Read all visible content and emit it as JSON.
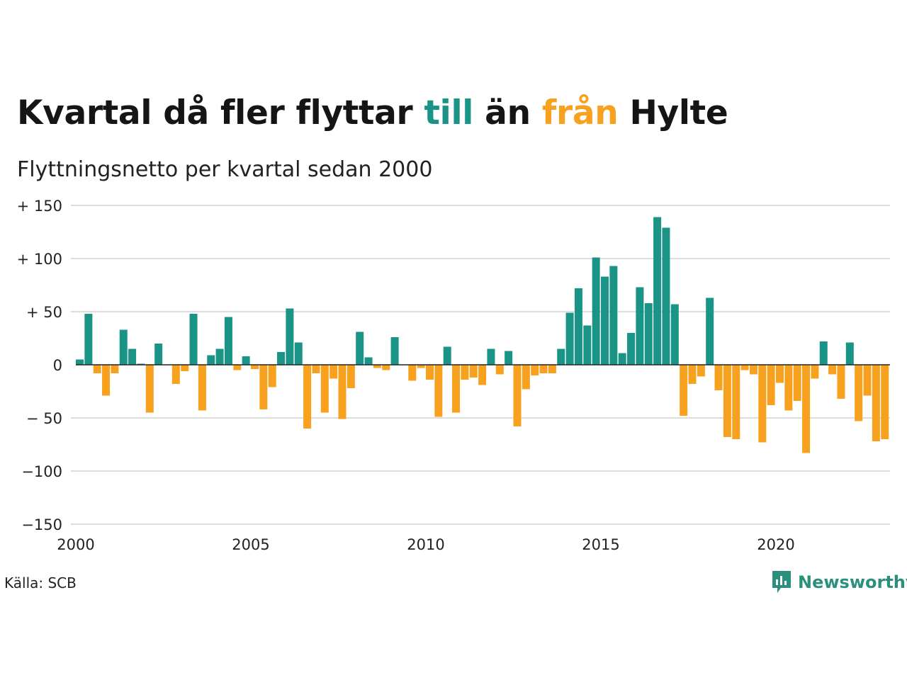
{
  "title": {
    "part1": "Kvartal då fler flyttar ",
    "positive_word": "till",
    "part2": " än ",
    "negative_word": "från",
    "part3": " Hylte"
  },
  "subtitle": "Flyttningsnetto per kvartal sedan 2000",
  "source": "Källa: SCB",
  "brand": {
    "name": "Newsworthy",
    "icon": "newsworthy-chart-icon"
  },
  "colors": {
    "positive": "#1a9487",
    "negative": "#f8a11f",
    "grid": "#dddddd",
    "zero_line": "#222222",
    "brand": "#2b8f7d"
  },
  "chart_data": {
    "type": "bar",
    "x_start": "2000 Q1",
    "x_ticks": [
      "2000",
      "2005",
      "2010",
      "2015",
      "2020"
    ],
    "ylim": [
      -150,
      150
    ],
    "y_ticks": [
      "+ 150",
      "+ 100",
      "+  50",
      "0",
      "− 50",
      "−100",
      "−150"
    ],
    "grid": true,
    "values": [
      5,
      48,
      -8,
      -29,
      -8,
      33,
      15,
      1,
      -45,
      20,
      0,
      -18,
      -6,
      48,
      -43,
      9,
      15,
      45,
      -5,
      8,
      -4,
      -42,
      -21,
      12,
      53,
      21,
      -60,
      -8,
      -45,
      -13,
      -51,
      -22,
      31,
      7,
      -3,
      -5,
      26,
      0,
      -15,
      -3,
      -14,
      -49,
      17,
      -45,
      -14,
      -12,
      -19,
      15,
      -9,
      13,
      -58,
      -23,
      -10,
      -8,
      -8,
      15,
      49,
      72,
      37,
      101,
      83,
      93,
      11,
      30,
      73,
      58,
      139,
      129,
      57,
      -48,
      -18,
      -11,
      63,
      -24,
      -68,
      -70,
      -5,
      -9,
      -73,
      -38,
      -17,
      -43,
      -34,
      -83,
      -13,
      22,
      -9,
      -32,
      21,
      -53,
      -29,
      -72,
      -70
    ]
  }
}
